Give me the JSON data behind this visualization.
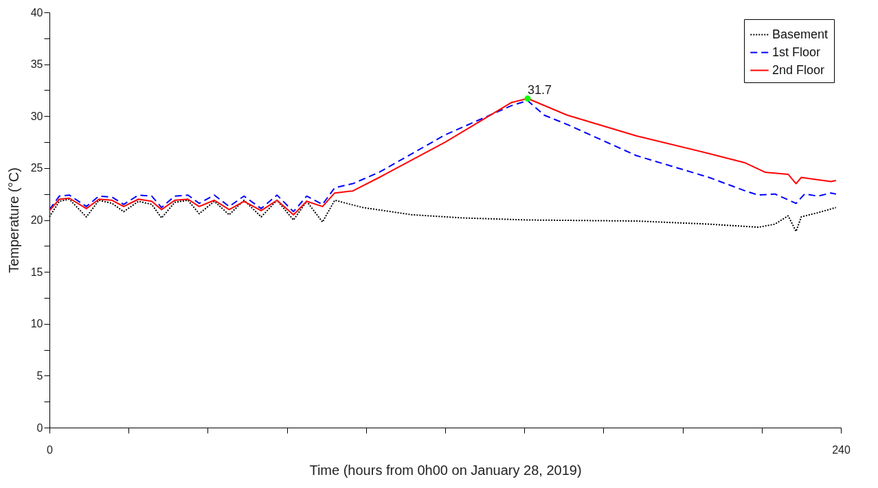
{
  "chart_data": {
    "type": "line",
    "xlabel": "Time (hours from 0h00 on January 28, 2019)",
    "ylabel": "Temperature (°C)",
    "xlim": [
      0,
      240
    ],
    "xticks": [
      {
        "value": 0,
        "label": "0"
      },
      {
        "value": 24,
        "label": null
      },
      {
        "value": 48,
        "label": null
      },
      {
        "value": 72,
        "label": null
      },
      {
        "value": 96,
        "label": null
      },
      {
        "value": 120,
        "label": null
      },
      {
        "value": 144,
        "label": null
      },
      {
        "value": 168,
        "label": null
      },
      {
        "value": 192,
        "label": null
      },
      {
        "value": 216,
        "label": null
      },
      {
        "value": 240,
        "label": "240"
      }
    ],
    "ylim": [
      0,
      40
    ],
    "yticks": [
      0,
      {
        "value": 2.5,
        "label": null
      },
      5,
      {
        "value": 7.5,
        "label": null
      },
      10,
      {
        "value": 12.5,
        "label": null
      },
      15,
      {
        "value": 17.5,
        "label": null
      },
      20,
      {
        "value": 22.5,
        "label": null
      },
      25,
      {
        "value": 27.5,
        "label": null
      },
      30,
      {
        "value": 32.5,
        "label": null
      },
      35,
      {
        "value": 37.5,
        "label": null
      },
      40
    ],
    "grid": false,
    "legend": "top right",
    "series": [
      {
        "name": "Basement",
        "color": "#000000",
        "line_style": "dotted",
        "x": [
          0,
          3,
          6,
          11.2,
          15,
          19,
          22.5,
          27,
          31,
          34,
          38,
          42,
          45.4,
          50,
          54.5,
          59,
          64.2,
          69,
          74,
          78,
          82.8,
          86.5,
          95,
          110,
          125,
          145,
          178,
          200,
          215,
          220,
          224,
          226.4,
          228,
          233,
          238.5
        ],
        "values": [
          20.3,
          21.8,
          22.0,
          20.3,
          21.9,
          21.6,
          20.8,
          21.8,
          21.5,
          20.2,
          21.7,
          21.9,
          20.6,
          21.8,
          20.5,
          21.9,
          20.3,
          21.9,
          20.0,
          21.8,
          19.8,
          21.9,
          21.2,
          20.5,
          20.2,
          20.0,
          19.9,
          19.6,
          19.3,
          19.6,
          20.4,
          18.9,
          20.3,
          20.7,
          21.2
        ]
      },
      {
        "name": "1st Floor",
        "color": "#0000ff",
        "line_style": "dashed",
        "x": [
          0,
          3,
          6,
          11.2,
          15,
          19,
          22.5,
          27,
          31,
          34,
          38,
          42,
          45.4,
          50,
          54.5,
          59,
          64.2,
          69,
          74,
          78,
          82.8,
          86.5,
          92,
          100,
          120,
          140,
          145,
          150,
          157,
          178,
          200,
          211,
          215,
          220,
          226.4,
          229,
          233,
          237,
          238.5
        ],
        "values": [
          21.0,
          22.3,
          22.4,
          21.3,
          22.3,
          22.2,
          21.5,
          22.4,
          22.3,
          21.2,
          22.3,
          22.4,
          21.6,
          22.4,
          21.3,
          22.3,
          21.1,
          22.4,
          20.8,
          22.3,
          21.5,
          23.1,
          23.5,
          24.6,
          28.2,
          31.0,
          31.5,
          30.1,
          29.2,
          26.2,
          24.1,
          22.8,
          22.4,
          22.5,
          21.6,
          22.5,
          22.3,
          22.6,
          22.5
        ]
      },
      {
        "name": "2nd Floor",
        "color": "#ff0000",
        "line_style": "solid",
        "x": [
          0,
          3,
          6,
          11.2,
          15,
          19,
          22.5,
          27,
          31,
          34,
          38,
          42,
          45.4,
          50,
          54.5,
          59,
          64.2,
          69,
          74,
          78,
          82.8,
          86.5,
          92,
          100,
          120,
          140,
          145,
          157,
          178,
          200,
          211,
          217,
          224,
          226.4,
          228,
          232.4,
          237,
          238.5
        ],
        "values": [
          20.9,
          22.0,
          22.1,
          21.1,
          22.0,
          21.9,
          21.3,
          22.0,
          21.8,
          21.0,
          21.9,
          22.0,
          21.3,
          21.9,
          21.0,
          21.8,
          20.9,
          21.9,
          20.5,
          21.8,
          21.3,
          22.6,
          22.8,
          24.1,
          27.5,
          31.3,
          31.7,
          30.1,
          28.1,
          26.4,
          25.5,
          24.6,
          24.4,
          23.5,
          24.1,
          23.9,
          23.7,
          23.8
        ]
      },
      {
        "type": "scatter",
        "color": "#00ff00",
        "marker": "circle",
        "x": [
          145
        ],
        "values": [
          31.7
        ]
      }
    ],
    "annotations": [
      {
        "text": "31.7",
        "x": 145,
        "y": 31.7
      }
    ]
  }
}
